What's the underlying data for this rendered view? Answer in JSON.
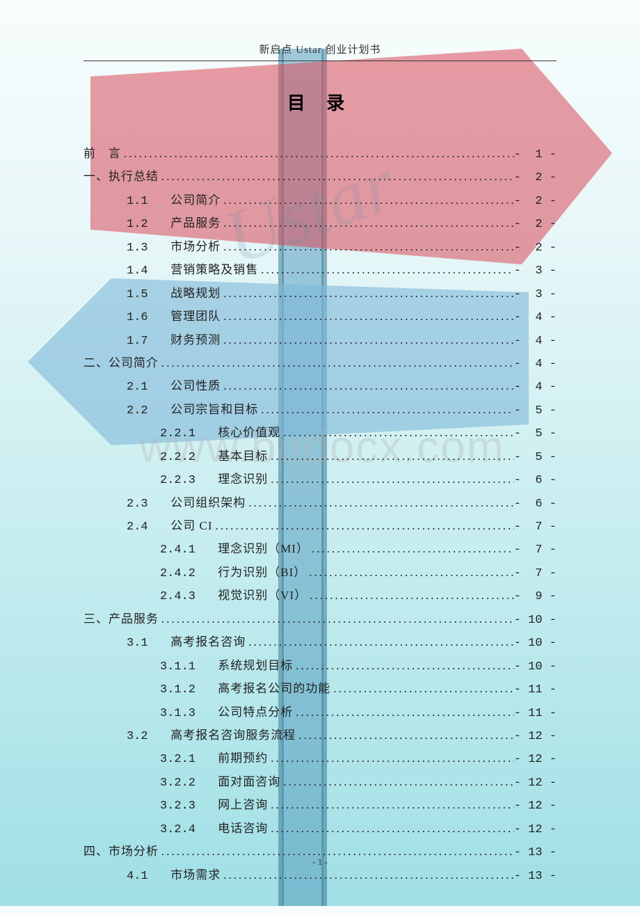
{
  "header": "新启点 Ustar 创业计划书",
  "title": "目 录",
  "footer": "- 1 -",
  "watermark_ustar": "Ustar",
  "watermark_bodocx": "www.bodocx.com",
  "bg": {
    "arrow_right_fill": "#d94a5a",
    "arrow_right_opacity": 0.55,
    "arrow_left_fill": "#7fb8d8",
    "arrow_left_opacity": 0.6,
    "pole_fill": "#5a9fc0",
    "pole_opacity": 0.55,
    "pole_edge": "#3a7a95"
  },
  "toc": [
    {
      "level": 0,
      "num": "",
      "text": "前　言",
      "page": "1"
    },
    {
      "level": 0,
      "num": "",
      "text": "一、执行总结 ",
      "page": "2"
    },
    {
      "level": 1,
      "num": "1.1",
      "text": "公司简介",
      "page": "2"
    },
    {
      "level": 1,
      "num": "1.2",
      "text": "产品服务",
      "page": "2"
    },
    {
      "level": 1,
      "num": "1.3",
      "text": "市场分析",
      "page": "2"
    },
    {
      "level": 1,
      "num": "1.4",
      "text": "营销策略及销售",
      "page": "3"
    },
    {
      "level": 1,
      "num": "1.5",
      "text": "战略规划",
      "page": "3"
    },
    {
      "level": 1,
      "num": "1.6",
      "text": "管理团队",
      "page": "4"
    },
    {
      "level": 1,
      "num": "1.7",
      "text": "财务预测",
      "page": "4"
    },
    {
      "level": 0,
      "num": "",
      "text": "二、公司简介 ",
      "page": "4"
    },
    {
      "level": 1,
      "num": "2.1",
      "text": "公司性质",
      "page": "4"
    },
    {
      "level": 1,
      "num": "2.2",
      "text": "公司宗旨和目标",
      "page": "5"
    },
    {
      "level": 2,
      "num": "2.2.1",
      "text": "核心价值观 ",
      "page": "5"
    },
    {
      "level": 2,
      "num": "2.2.2",
      "text": "基本目标 ",
      "page": "5"
    },
    {
      "level": 2,
      "num": "2.2.3",
      "text": "理念识别 ",
      "page": "6"
    },
    {
      "level": 1,
      "num": "2.3",
      "text": "公司组织架构",
      "page": "6"
    },
    {
      "level": 1,
      "num": "2.4",
      "text": "公司 CI ",
      "page": "7"
    },
    {
      "level": 2,
      "num": "2.4.1",
      "text": "理念识别（MI） ",
      "page": "7"
    },
    {
      "level": 2,
      "num": "2.4.2",
      "text": "行为识别（BI） ",
      "page": "7"
    },
    {
      "level": 2,
      "num": "2.4.3",
      "text": "视觉识别（VI） ",
      "page": "9"
    },
    {
      "level": 0,
      "num": "",
      "text": "三、产品服务 ",
      "page": "10"
    },
    {
      "level": 1,
      "num": "3.1",
      "text": "高考报名咨询",
      "page": "10"
    },
    {
      "level": 2,
      "num": "3.1.1",
      "text": "系统规划目标 ",
      "page": "10"
    },
    {
      "level": 2,
      "num": "3.1.2",
      "text": "高考报名公司的功能 ",
      "page": "11"
    },
    {
      "level": 2,
      "num": "3.1.3",
      "text": "公司特点分析 ",
      "page": "11"
    },
    {
      "level": 1,
      "num": "3.2",
      "text": "高考报名咨询服务流程",
      "page": "12"
    },
    {
      "level": 2,
      "num": "3.2.1",
      "text": "前期预约 ",
      "page": "12"
    },
    {
      "level": 2,
      "num": "3.2.2",
      "text": "面对面咨询 ",
      "page": "12"
    },
    {
      "level": 2,
      "num": "3.2.3",
      "text": "网上咨询 ",
      "page": "12"
    },
    {
      "level": 2,
      "num": "3.2.4",
      "text": "电话咨询 ",
      "page": "12"
    },
    {
      "level": 0,
      "num": "",
      "text": "四、市场分析 ",
      "page": "13"
    },
    {
      "level": 1,
      "num": "4.1",
      "text": "市场需求",
      "page": "13"
    }
  ]
}
